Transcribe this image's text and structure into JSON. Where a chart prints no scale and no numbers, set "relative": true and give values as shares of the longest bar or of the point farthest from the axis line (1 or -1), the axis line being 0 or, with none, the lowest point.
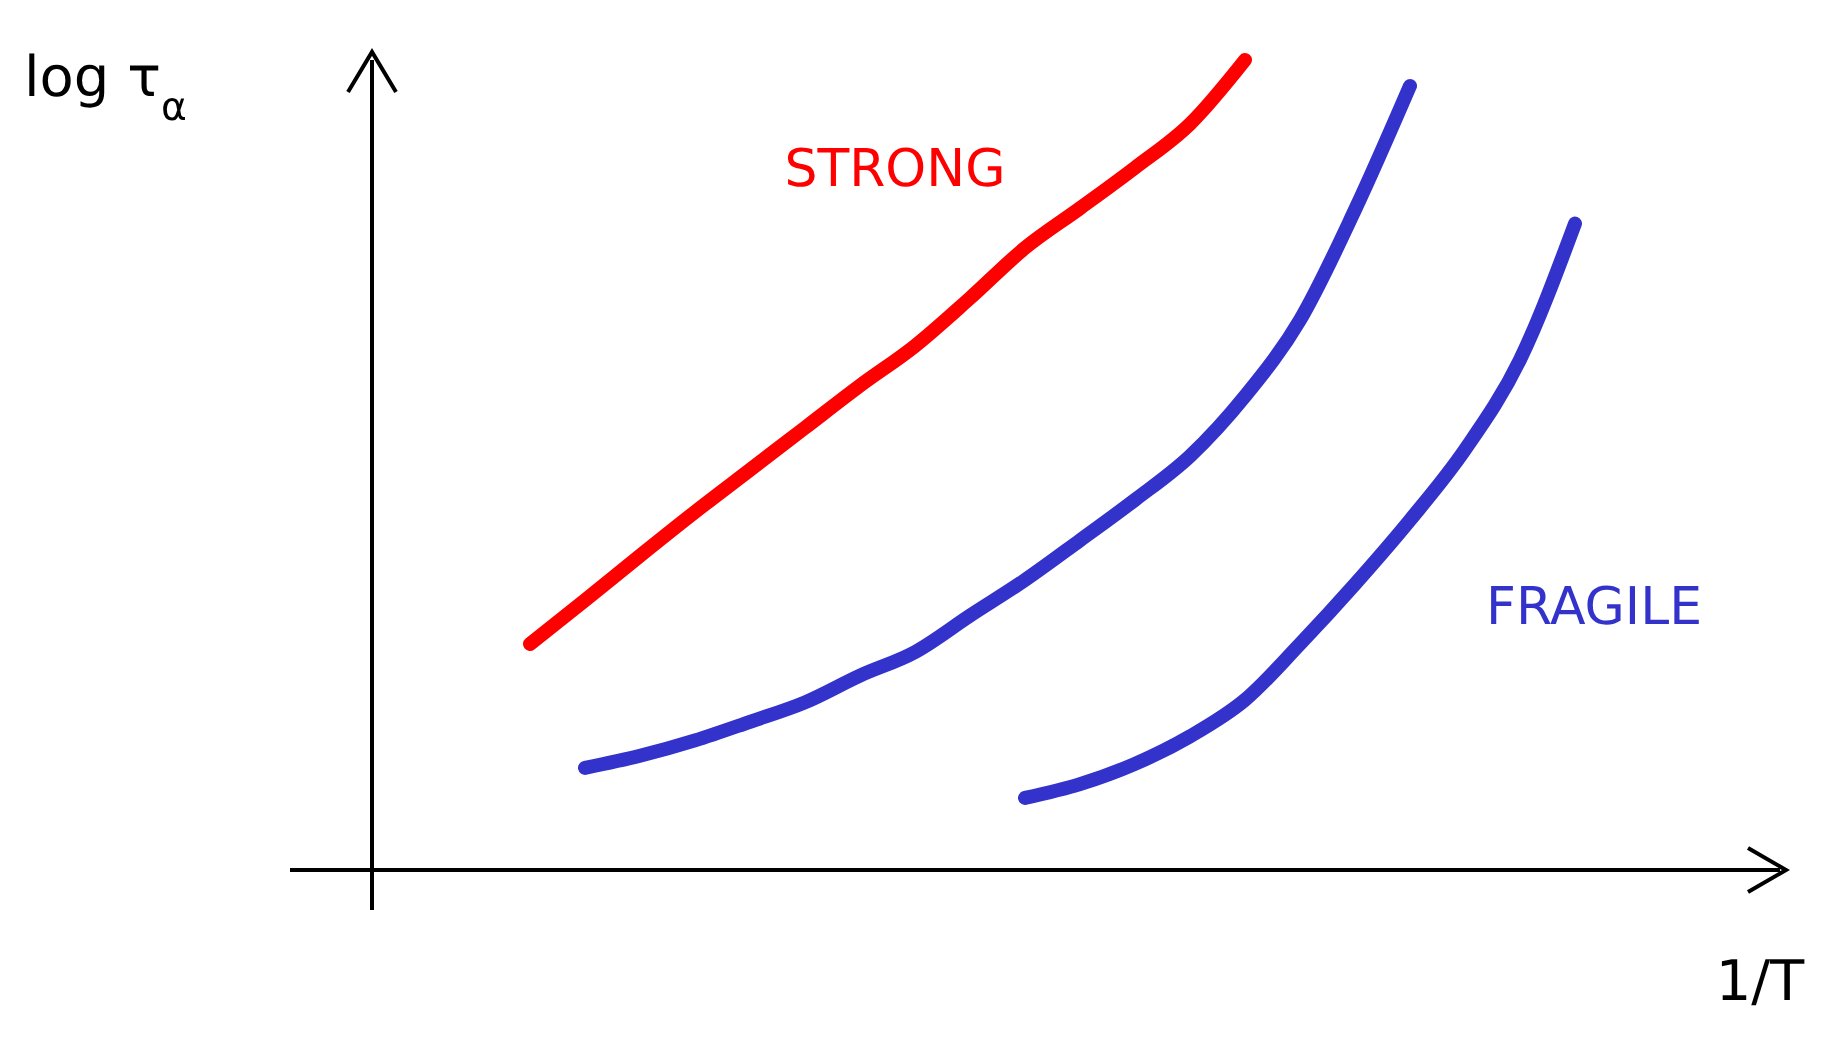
{
  "chart_data": {
    "type": "line",
    "relative": true,
    "ylabel": "log τ$_{α}$",
    "xlabel": "1/T",
    "line_style": "solid",
    "categories": [
      null,
      null,
      null,
      null,
      null,
      null,
      null,
      null,
      null,
      null,
      null,
      null,
      null,
      null,
      null,
      null,
      null,
      null,
      null,
      null,
      null,
      null,
      null,
      null,
      null
    ],
    "series": [
      {
        "name": "STRONG",
        "color": "#ff0000",
        "values": [
          null,
          null,
          0.279,
          0.333,
          0.388,
          0.442,
          0.494,
          0.546,
          0.598,
          0.647,
          0.706,
          0.768,
          0.817,
          0.867,
          0.921,
          1,
          null,
          null,
          null,
          null,
          null,
          null,
          null,
          null,
          null
        ]
      },
      {
        "color": "#3333cc",
        "values": [
          null,
          null,
          null,
          0.126,
          0.141,
          0.16,
          0.183,
          0.207,
          0.24,
          0.269,
          0.314,
          0.358,
          0.407,
          0.457,
          0.511,
          0.585,
          0.679,
          0.815,
          0.968,
          null,
          null,
          null,
          null,
          null,
          null
        ]
      },
      {
        "name": "FRAGILE",
        "color": "#3333cc",
        "values": [
          null,
          null,
          null,
          null,
          null,
          null,
          null,
          null,
          null,
          null,
          null,
          0.089,
          0.106,
          0.131,
          0.165,
          0.21,
          0.279,
          0.353,
          0.432,
          0.519,
          0.63,
          0.798,
          null,
          null,
          null
        ]
      }
    ]
  }
}
